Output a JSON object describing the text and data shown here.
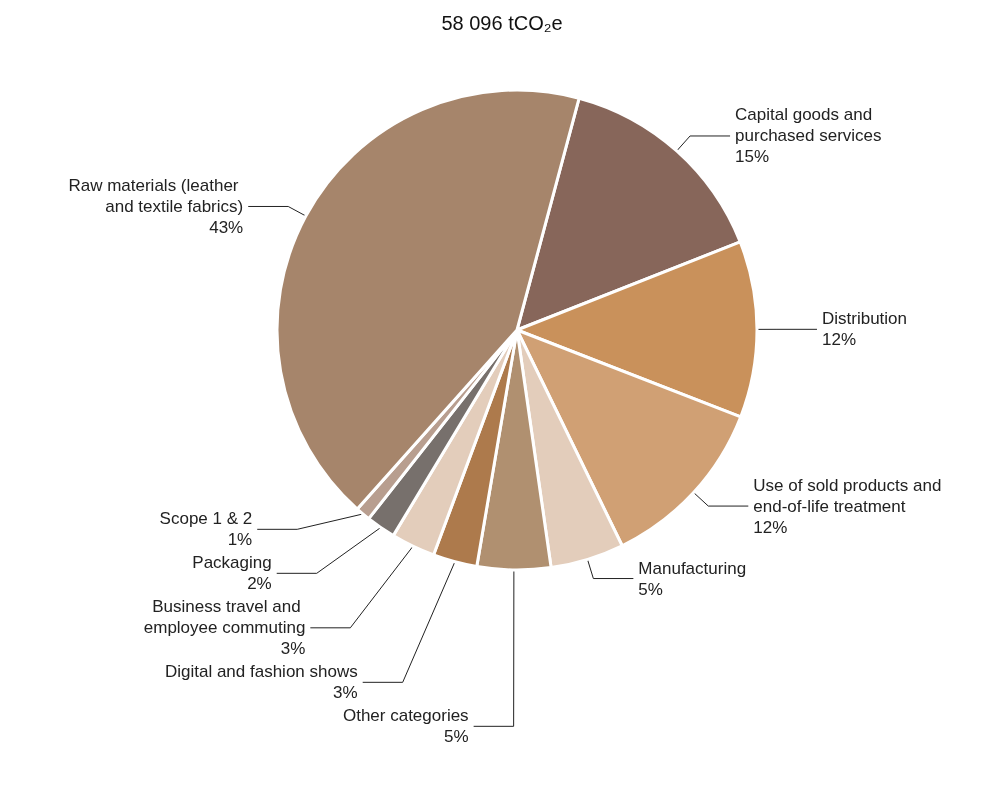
{
  "chart_data": {
    "type": "pie",
    "title": "58 096 tCO₂e",
    "categories": [
      "Capital goods and purchased services",
      "Distribution",
      "Use of sold products and end-of-life treatment",
      "Manufacturing",
      "Other categories",
      "Digital and fashion shows",
      "Business travel and employee commuting",
      "Packaging",
      "Scope 1 & 2",
      "Raw materials (leather and textile fabrics)"
    ],
    "values": [
      15,
      12,
      12,
      5,
      5,
      3,
      3,
      2,
      1,
      43
    ],
    "value_labels": [
      "15%",
      "12%",
      "12%",
      "5%",
      "5%",
      "3%",
      "3%",
      "2%",
      "1%",
      "43%"
    ],
    "colors": [
      "#87665a",
      "#c9915b",
      "#d0a074",
      "#e3cdbb",
      "#b09070",
      "#ad7a4c",
      "#e3cdbb",
      "#77706c",
      "#b89e8f",
      "#a6856b"
    ],
    "legend": false
  }
}
